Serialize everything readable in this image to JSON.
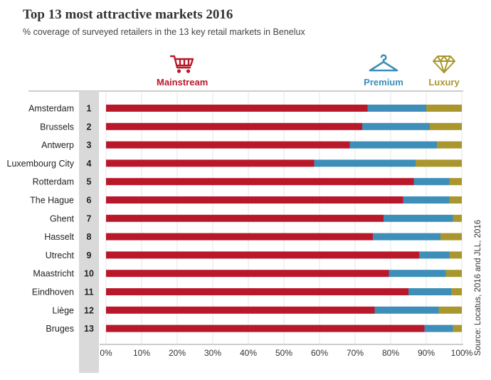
{
  "header": {
    "title": "Top 13 most attractive markets 2016",
    "subtitle": "% coverage of surveyed retailers in the 13 key retail markets in Benelux"
  },
  "legend": {
    "mainstream": {
      "label": "Mainstream",
      "icon": "shopping-cart-icon",
      "color": "#b9182a"
    },
    "premium": {
      "label": "Premium",
      "icon": "clothes-hanger-icon",
      "color": "#3d8eb9"
    },
    "luxury": {
      "label": "Luxury",
      "icon": "diamond-icon",
      "color": "#a9962e"
    }
  },
  "source": "Source: Locatus, 2016 and JLL, 2016",
  "chart_data": {
    "type": "bar",
    "orientation": "horizontal",
    "stacked": true,
    "title": "Top 13 most attractive markets 2016",
    "categories": [
      "Amsterdam",
      "Brussels",
      "Antwerp",
      "Luxembourg City",
      "Rotterdam",
      "The Hague",
      "Ghent",
      "Hasselt",
      "Utrecht",
      "Maastricht",
      "Eindhoven",
      "Liège",
      "Bruges"
    ],
    "ranks": [
      "1",
      "2",
      "3",
      "4",
      "5",
      "6",
      "7",
      "8",
      "9",
      "10",
      "11",
      "12",
      "13"
    ],
    "series": [
      {
        "name": "Mainstream",
        "color": "#b9182a",
        "values": [
          73.5,
          72,
          68.5,
          58.5,
          86.5,
          83.5,
          78,
          75,
          88,
          79.5,
          85,
          75.5,
          89.5
        ]
      },
      {
        "name": "Premium",
        "color": "#3d8eb9",
        "values": [
          16.5,
          19,
          24.5,
          28.5,
          10,
          13,
          19.5,
          19,
          8.5,
          16,
          12,
          18,
          8
        ]
      },
      {
        "name": "Luxury",
        "color": "#a9962e",
        "values": [
          10,
          9,
          7,
          13,
          3.5,
          3.5,
          2.5,
          6,
          3.5,
          4.5,
          3,
          6.5,
          2.5
        ]
      }
    ],
    "xlim": [
      0,
      100
    ],
    "xticks": [
      "0%",
      "10%",
      "20%",
      "30%",
      "40%",
      "50%",
      "60%",
      "70%",
      "80%",
      "90%",
      "100%"
    ],
    "xlabel": "",
    "ylabel": ""
  }
}
